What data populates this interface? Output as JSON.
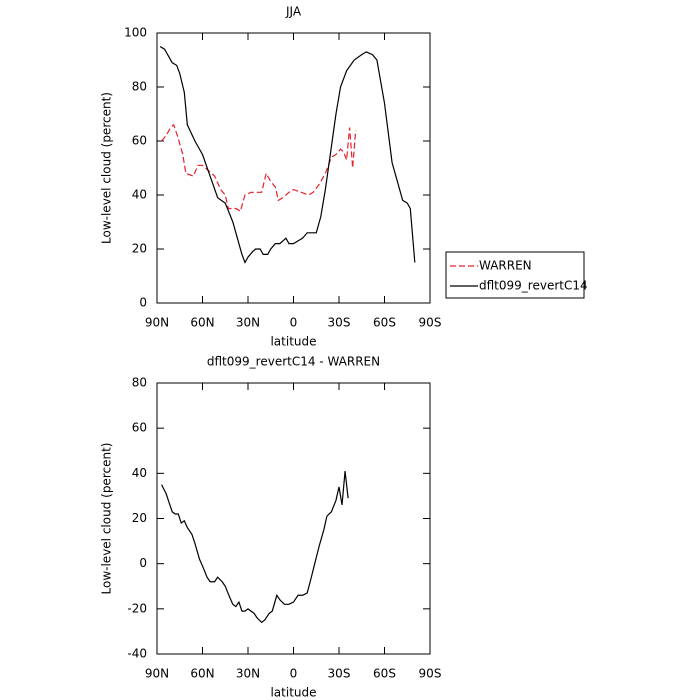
{
  "chart_data": [
    {
      "type": "line",
      "title": "JJA",
      "x_label": "latitude",
      "y_label": "Low-level cloud (percent)",
      "xlim": [
        90,
        -90
      ],
      "xticks": [
        {
          "value": 90,
          "label": "90N"
        },
        {
          "value": 60,
          "label": "60N"
        },
        {
          "value": 30,
          "label": "30N"
        },
        0,
        {
          "value": -30,
          "label": "30S"
        },
        {
          "value": -60,
          "label": "60S"
        },
        {
          "value": -90,
          "label": "90S"
        }
      ],
      "ylim": [
        0,
        100
      ],
      "yticks": [
        0,
        20,
        40,
        60,
        80,
        100
      ],
      "legend": "right",
      "series": [
        {
          "name": "WARREN",
          "color": "#e8202a",
          "dashed": true,
          "x": [
            87,
            84,
            81,
            79,
            76,
            73,
            71,
            66,
            63,
            60,
            56,
            52,
            48,
            45,
            43,
            38,
            35,
            32,
            28,
            24,
            21,
            18,
            15,
            12,
            10,
            7,
            3,
            0,
            -5,
            -10,
            -13,
            -17,
            -21,
            -25,
            -28,
            -31,
            -33,
            -35,
            -37,
            -39,
            -41
          ],
          "values": [
            60,
            62,
            65,
            66,
            61,
            55,
            48,
            47,
            51,
            51,
            49,
            47,
            42,
            40,
            35,
            35,
            34,
            40,
            41,
            41,
            41,
            48,
            45,
            43,
            38,
            39,
            41,
            42,
            41,
            40,
            41,
            44,
            48,
            54,
            55,
            57,
            56,
            53,
            65,
            50,
            64
          ]
        },
        {
          "name": "dflt099_revertC14",
          "color": "#000000",
          "dashed": false,
          "x": [
            88,
            85,
            80,
            77,
            75,
            72,
            70,
            65,
            60,
            55,
            50,
            45,
            40,
            37,
            34,
            32,
            30,
            27,
            25,
            22,
            20,
            17,
            15,
            12,
            9,
            7,
            5,
            3,
            0,
            -3,
            -6,
            -9,
            -12,
            -15,
            -18,
            -21,
            -25,
            -28,
            -31,
            -35,
            -40,
            -45,
            -48,
            -52,
            -55,
            -60,
            -65,
            -68,
            -72,
            -75,
            -77,
            -80
          ],
          "values": [
            95,
            94,
            89,
            88,
            85,
            78,
            66,
            60,
            55,
            47,
            39,
            37,
            30,
            24,
            18,
            15,
            17,
            19,
            20,
            20,
            18,
            18,
            20,
            22,
            22,
            23,
            24,
            22,
            22,
            23,
            24,
            26,
            26,
            26,
            32,
            42,
            58,
            70,
            80,
            86,
            90,
            92,
            93,
            92,
            90,
            74,
            52,
            46,
            38,
            37,
            35,
            15
          ]
        }
      ]
    },
    {
      "type": "line",
      "title": "dflt099_revertC14 - WARREN",
      "x_label": "latitude",
      "y_label": "Low-level cloud (percent)",
      "xlim": [
        90,
        -90
      ],
      "xticks": [
        {
          "value": 90,
          "label": "90N"
        },
        {
          "value": 60,
          "label": "60N"
        },
        {
          "value": 30,
          "label": "30N"
        },
        0,
        {
          "value": -30,
          "label": "30S"
        },
        {
          "value": -60,
          "label": "60S"
        },
        {
          "value": -90,
          "label": "90S"
        }
      ],
      "ylim": [
        -40,
        80
      ],
      "yticks": [
        -40,
        -20,
        0,
        20,
        40,
        60,
        80
      ],
      "series": [
        {
          "color": "#000000",
          "dashed": false,
          "x": [
            87,
            84,
            82,
            80,
            78,
            76,
            74,
            72,
            70,
            67,
            65,
            62,
            60,
            57,
            55,
            52,
            50,
            47,
            45,
            42,
            40,
            38,
            36,
            34,
            32,
            30,
            28,
            26,
            24,
            21,
            19,
            16,
            14,
            11,
            9,
            6,
            3,
            0,
            -3,
            -6,
            -9,
            -11,
            -14,
            -17,
            -20,
            -22,
            -25,
            -28,
            -30,
            -32,
            -34,
            -36
          ],
          "values": [
            35,
            31,
            27,
            23,
            22,
            22,
            18,
            19,
            16,
            13,
            9,
            2,
            -1,
            -6,
            -8,
            -8,
            -6,
            -8,
            -10,
            -15,
            -18,
            -19,
            -17,
            -21,
            -21,
            -20,
            -21,
            -22,
            -24,
            -26,
            -25,
            -22,
            -21,
            -14,
            -16,
            -18,
            -18,
            -17,
            -14,
            -14,
            -13,
            -8,
            0,
            8,
            15,
            21,
            23,
            28,
            34,
            26,
            41,
            29
          ]
        }
      ]
    }
  ]
}
